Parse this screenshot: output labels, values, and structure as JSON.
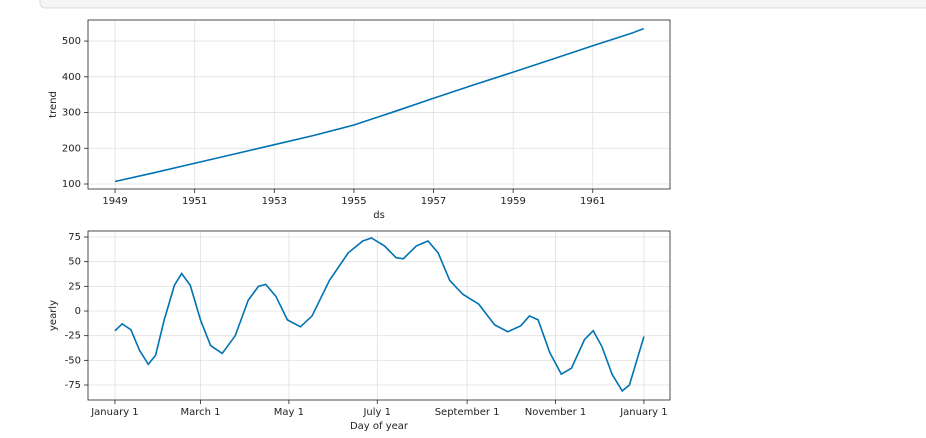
{
  "chart_data": [
    {
      "type": "line",
      "xlabel": "ds",
      "ylabel": "trend",
      "x": [
        1949,
        1950,
        1951,
        1952,
        1953,
        1954,
        1955,
        1956,
        1957,
        1958,
        1959,
        1960,
        1961,
        1962,
        1962.28
      ],
      "series": [
        {
          "color": "#0072B2",
          "values": [
            107,
            132,
            158,
            184,
            210,
            236,
            265,
            302,
            340,
            377,
            413,
            450,
            487,
            523,
            535
          ]
        }
      ],
      "xlim": [
        1948.32,
        1962.94
      ],
      "xticks": [
        1949,
        1951,
        1953,
        1955,
        1957,
        1959,
        1961
      ],
      "ylim": [
        86,
        559
      ],
      "yticks": [
        100,
        200,
        300,
        400,
        500
      ],
      "grid": true
    },
    {
      "type": "line",
      "xlabel": "Day of year",
      "ylabel": "yearly",
      "x": [
        0,
        5,
        11,
        17,
        23,
        28,
        34,
        41,
        46,
        52,
        59,
        66,
        74,
        83,
        92,
        99,
        104,
        111,
        119,
        128,
        136,
        148,
        161,
        171,
        177,
        186,
        194,
        199,
        208,
        216,
        223,
        231,
        240,
        251,
        262,
        271,
        280,
        286,
        292,
        300,
        308,
        315,
        324,
        330,
        336,
        343,
        350,
        355,
        365
      ],
      "series": [
        {
          "color": "#0072B2",
          "values": [
            -20,
            -13,
            -19,
            -40,
            -54,
            -45,
            -9,
            26,
            38,
            26,
            -9,
            -35,
            -43,
            -25,
            11,
            25,
            27,
            15,
            -9,
            -16,
            -5,
            31,
            59,
            71,
            74,
            66,
            54,
            53,
            66,
            71,
            59,
            31,
            17,
            7,
            -14,
            -21,
            -15,
            -5,
            -9,
            -42,
            -64,
            -58,
            -29,
            -20,
            -36,
            -64,
            -81,
            -75,
            -26
          ]
        }
      ],
      "xlim": [
        -18.6,
        383
      ],
      "xticks": [
        {
          "value": 0,
          "label": "January 1"
        },
        {
          "value": 59,
          "label": "March 1"
        },
        {
          "value": 120,
          "label": "May 1"
        },
        {
          "value": 181,
          "label": "July 1"
        },
        {
          "value": 243,
          "label": "September 1"
        },
        {
          "value": 304,
          "label": "November 1"
        },
        {
          "value": 365,
          "label": "January 1"
        }
      ],
      "ylim": [
        -90.2,
        81.1
      ],
      "yticks": [
        -75,
        -50,
        -25,
        0,
        25,
        50,
        75
      ],
      "grid": true
    }
  ]
}
